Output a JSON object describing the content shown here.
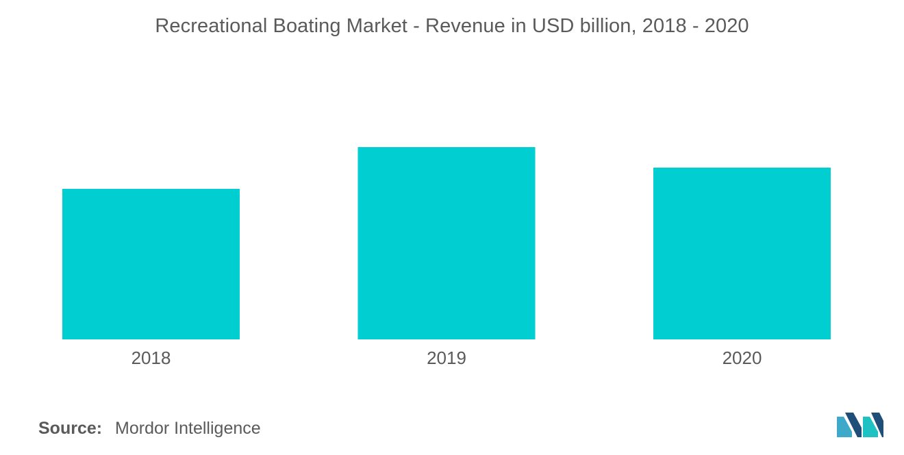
{
  "chart_data": {
    "type": "bar",
    "title": "Recreational Boating Market - Revenue in USD billion, 2018 - 2020",
    "categories": [
      "2018",
      "2019",
      "2020"
    ],
    "values": [
      22,
      28.1,
      25.1
    ],
    "ylim": [
      0,
      40
    ],
    "grid": false,
    "legend": "none",
    "xlabel": "",
    "ylabel": "",
    "bar_color": "#00ced1"
  },
  "source": {
    "label": "Source:",
    "value": "Mordor Intelligence"
  },
  "logo": {
    "icon": "mordor-intelligence-logo-icon",
    "colors": [
      "#1f4e79",
      "#3fa9c9",
      "#1fc2c2"
    ]
  }
}
